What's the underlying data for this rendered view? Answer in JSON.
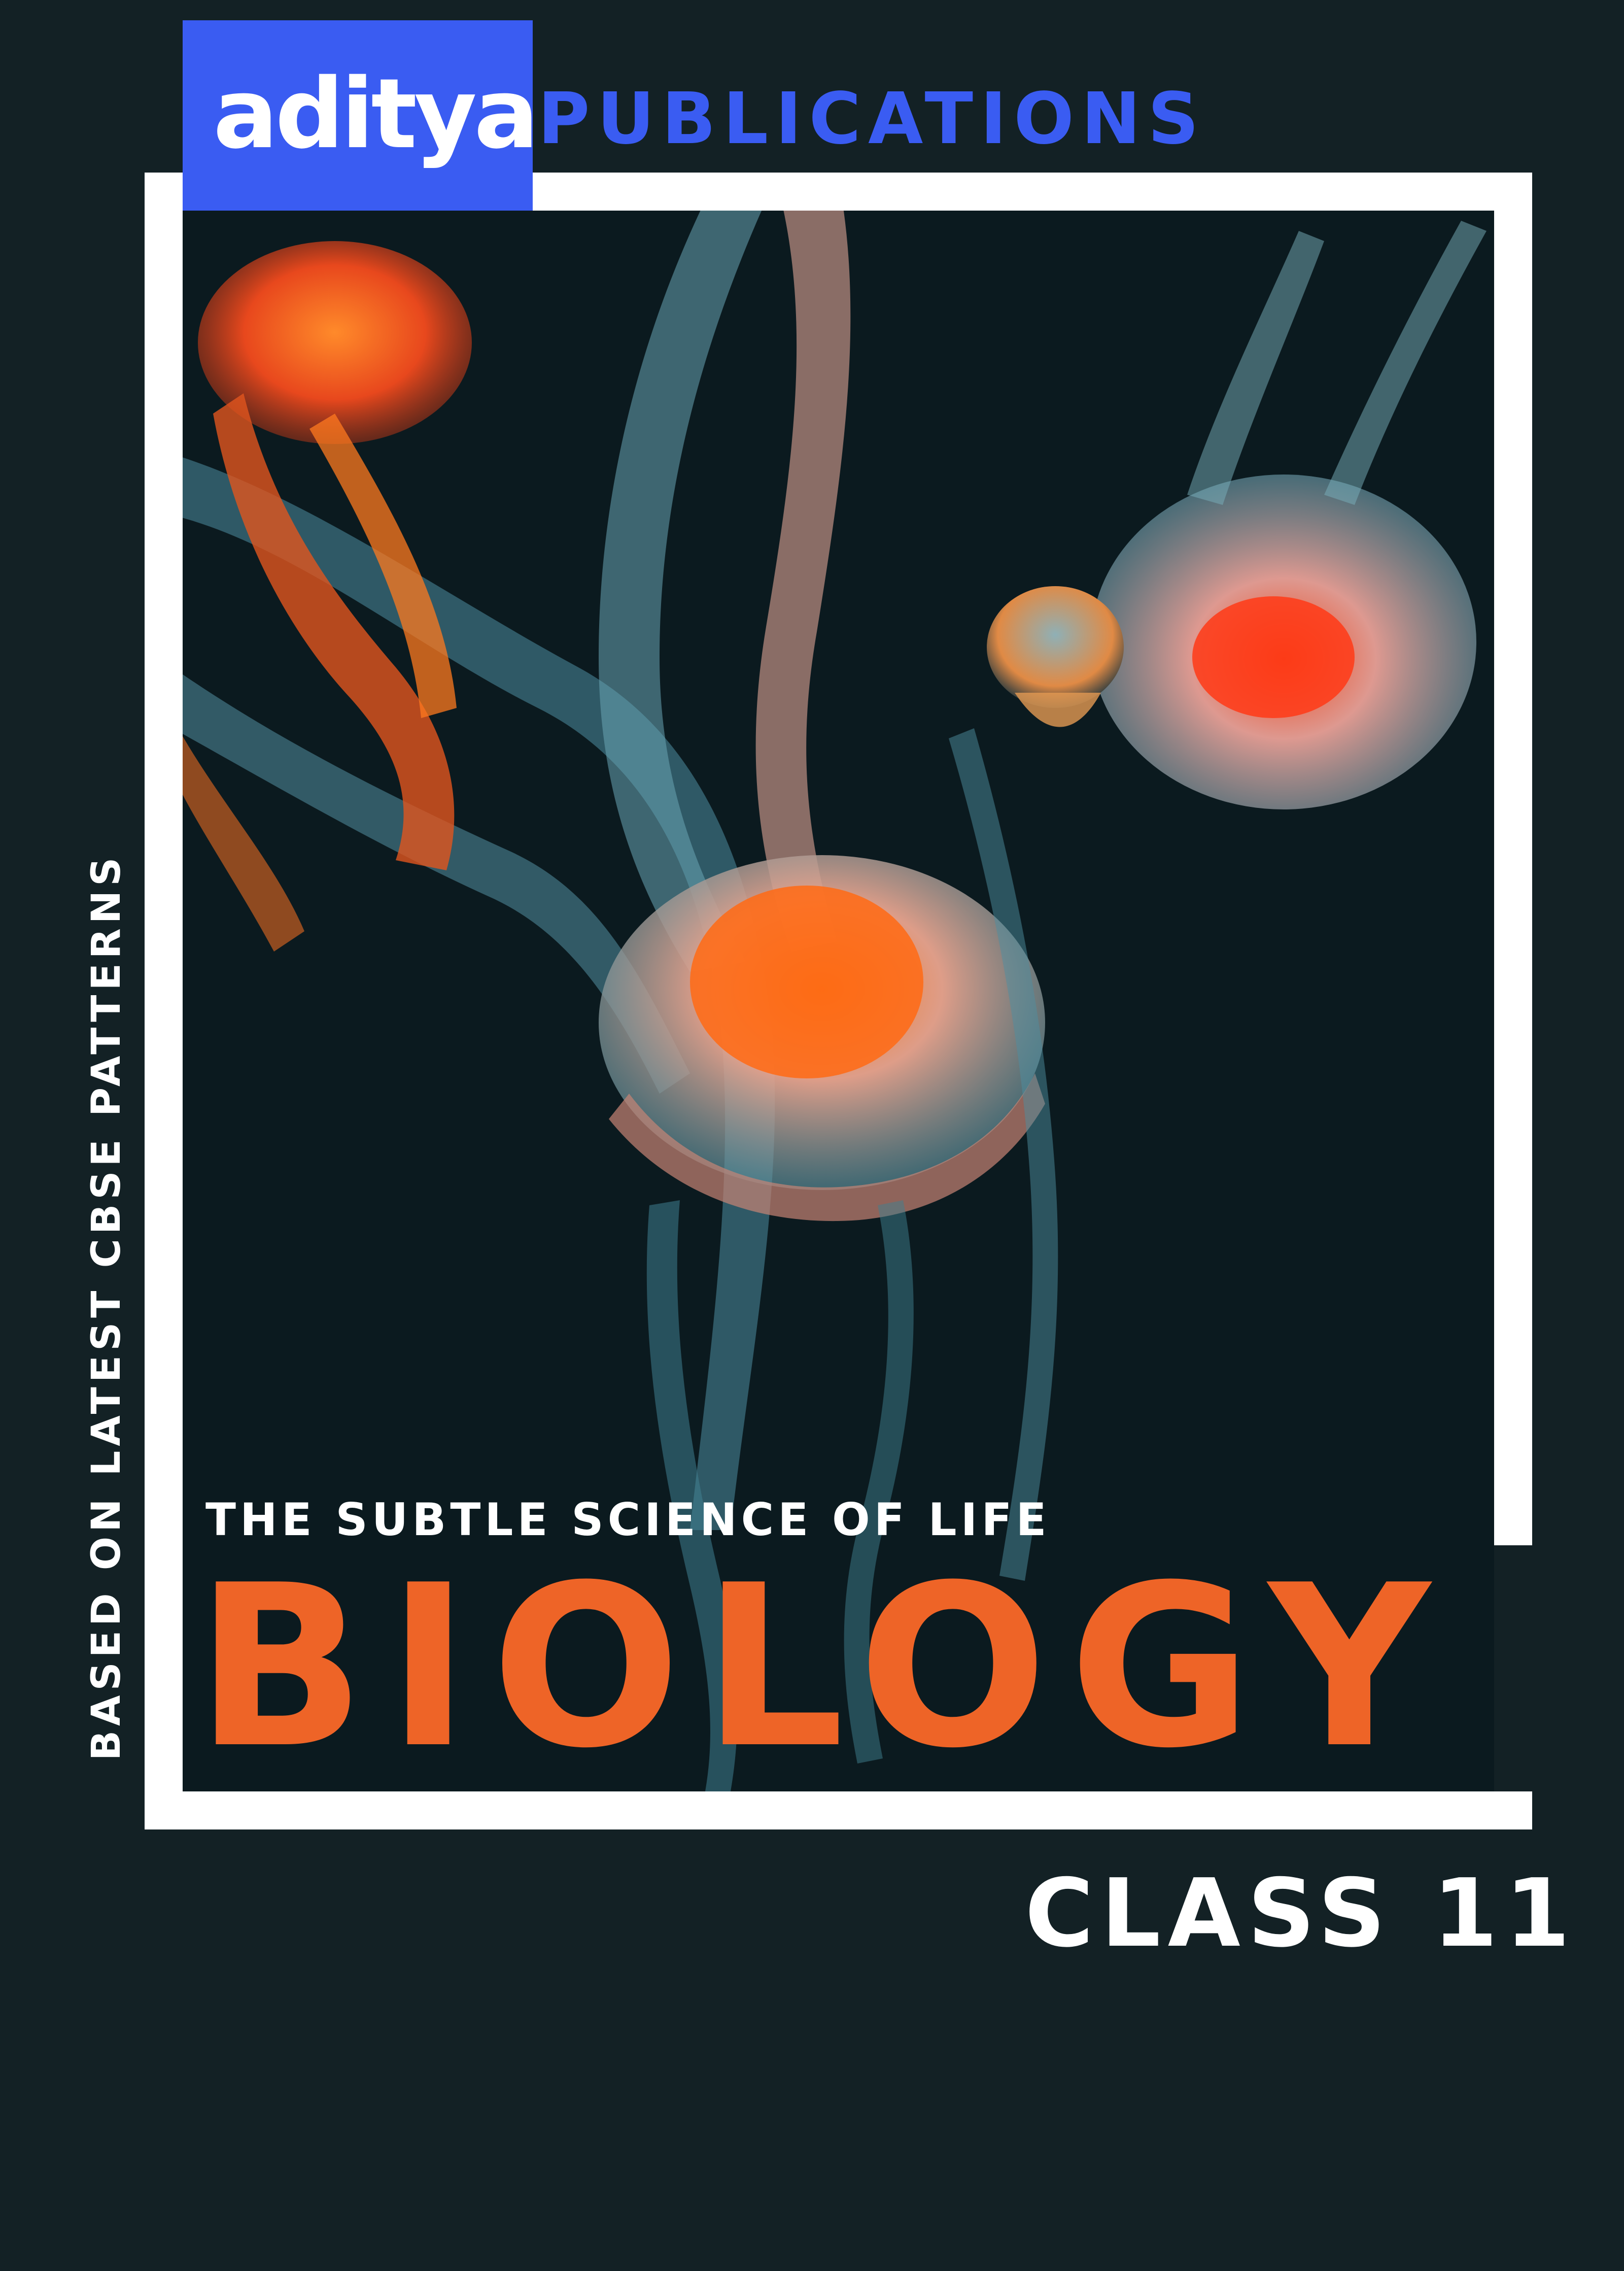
{
  "brand": {
    "logo_word": "aditya",
    "publisher": "PUBLICATIONS",
    "color": "#3a5cf2"
  },
  "cover": {
    "side_text": "BASED ON LATEST CBSE PATTERNS",
    "subtitle": "THE SUBTLE SCIENCE OF LIFE",
    "title": "BIOLOGY",
    "class_label": "CLASS 11",
    "background_color": "#132125",
    "title_color": "#ee6427",
    "frame_color": "#ffffff"
  },
  "photo": {
    "subject": "jellyfish-photo"
  }
}
